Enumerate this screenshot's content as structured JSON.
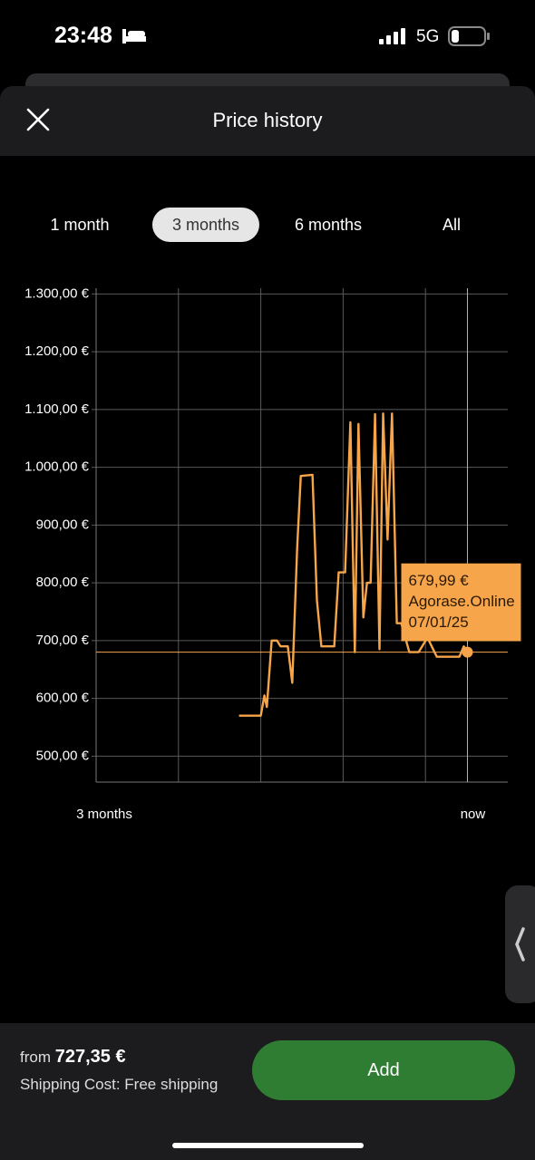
{
  "status_bar": {
    "time": "23:48",
    "network": "5G"
  },
  "header": {
    "title": "Price history"
  },
  "tabs": {
    "items": [
      "1 month",
      "3 months",
      "6 months",
      "All"
    ],
    "selected": 1
  },
  "chart_data": {
    "type": "line",
    "color": "#f7a54a",
    "x": [
      -56.6,
      -51.2,
      -50.3,
      -49.7,
      -48.5,
      -47.2,
      -46.3,
      -44.5,
      -43.4,
      -42.2,
      -41.3,
      -38.4,
      -37.3,
      -36.2,
      -33.0,
      -31.9,
      -30.3,
      -29.0,
      -27.9,
      -27.0,
      -25.8,
      -24.9,
      -24.0,
      -22.9,
      -21.8,
      -20.9,
      -19.8,
      -18.7,
      -17.5,
      -16.4,
      -14.4,
      -12.1,
      -9.9,
      -7.6,
      -2.0,
      -0.9,
      0
    ],
    "values": [
      570,
      570,
      605,
      585,
      700,
      700,
      690,
      690,
      627,
      860,
      985,
      987,
      770,
      690,
      690,
      818,
      818,
      1078,
      680,
      1075,
      740,
      800,
      800,
      1092,
      685,
      1093,
      875,
      1093,
      730,
      730,
      680,
      680,
      705,
      672,
      672,
      690,
      679.99
    ],
    "xlim": [
      -92,
      10
    ],
    "xticks": [
      {
        "value": -92,
        "label": "3 months"
      },
      {
        "value": 0,
        "label": "now"
      }
    ],
    "ylim": [
      455,
      1310
    ],
    "yticks": [
      {
        "value": 500,
        "label": "500,00 €"
      },
      {
        "value": 600,
        "label": "600,00 €"
      },
      {
        "value": 700,
        "label": "700,00 €"
      },
      {
        "value": 800,
        "label": "800,00 €"
      },
      {
        "value": 900,
        "label": "900,00 €"
      },
      {
        "value": 1000,
        "label": "1.000,00 €"
      },
      {
        "value": 1100,
        "label": "1.100,00 €"
      },
      {
        "value": 1200,
        "label": "1.200,00 €"
      },
      {
        "value": 1300,
        "label": "1.300,00 €"
      }
    ],
    "grid": true,
    "tooltip": {
      "x": 0,
      "value": 679.99,
      "label": "679,99 €",
      "store": "Agorase.Online",
      "date": "07/01/25"
    }
  },
  "footer": {
    "from_label": "from",
    "price": "727,35 €",
    "shipping": "Shipping Cost: Free shipping",
    "button": "Add"
  }
}
